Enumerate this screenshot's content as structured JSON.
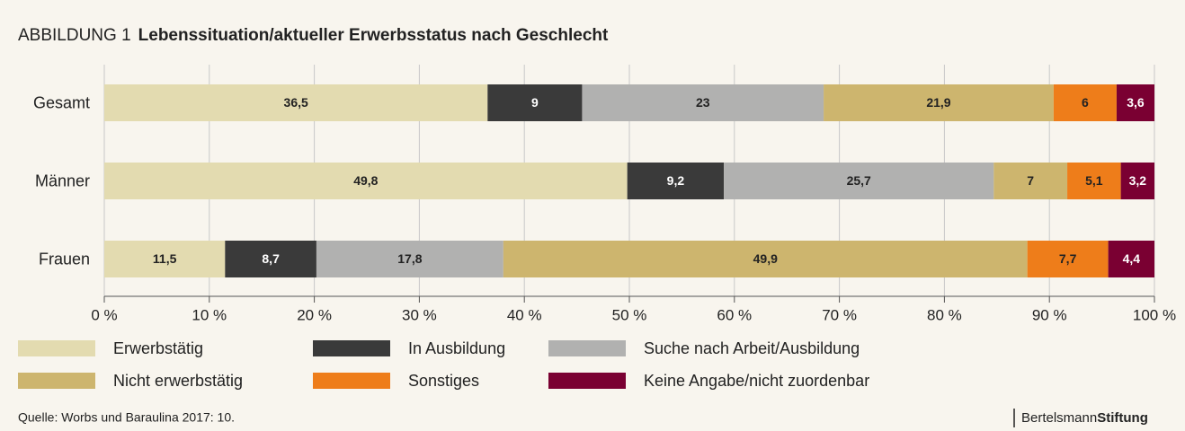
{
  "chart_data": {
    "type": "stacked_barh",
    "title_prefix": "ABBILDUNG 1",
    "title": "Lebenssituation/aktueller Erwerbsstatus nach Geschlecht",
    "categories": [
      "Gesamt",
      "Männer",
      "Frauen"
    ],
    "series": [
      {
        "name": "Erwerbstätig",
        "color": "#e3dbb0",
        "values": [
          36.5,
          49.8,
          11.5
        ],
        "value_labels": [
          "36,5",
          "49,8",
          "11,5"
        ]
      },
      {
        "name": "In Ausbildung",
        "color": "#3a3a3a",
        "values": [
          9,
          9.2,
          8.7
        ],
        "value_labels": [
          "9",
          "9,2",
          "8,7"
        ]
      },
      {
        "name": "Suche nach Arbeit/Ausbildung",
        "color": "#b1b1b0",
        "values": [
          23,
          25.7,
          17.8
        ],
        "value_labels": [
          "23",
          "25,7",
          "17,8"
        ]
      },
      {
        "name": "Nicht erwerbstätig",
        "color": "#cdb56e",
        "values": [
          21.9,
          7,
          49.9
        ],
        "value_labels": [
          "21,9",
          "7",
          "49,9"
        ]
      },
      {
        "name": "Sonstiges",
        "color": "#ee7d1a",
        "values": [
          6,
          5.1,
          7.7
        ],
        "value_labels": [
          "6",
          "5,1",
          "7,7"
        ]
      },
      {
        "name": "Keine Angabe/nicht zuordenbar",
        "color": "#7a0032",
        "values": [
          3.6,
          3.2,
          4.4
        ],
        "value_labels": [
          "3,6",
          "3,2",
          "4,4"
        ]
      }
    ],
    "xlim": [
      0,
      100
    ],
    "xticks": [
      {
        "value": 0,
        "label": "0 %"
      },
      {
        "value": 10,
        "label": "10 %"
      },
      {
        "value": 20,
        "label": "20 %"
      },
      {
        "value": 30,
        "label": "30 %"
      },
      {
        "value": 40,
        "label": "40 %"
      },
      {
        "value": 50,
        "label": "50 %"
      },
      {
        "value": 60,
        "label": "60 %"
      },
      {
        "value": 70,
        "label": "70 %"
      },
      {
        "value": 80,
        "label": "80 %"
      },
      {
        "value": 90,
        "label": "90 %"
      },
      {
        "value": 100,
        "label": "100 %"
      }
    ],
    "grid": true,
    "source": "Quelle: Worbs und Baraulina 2017: 10.",
    "logo": [
      "Bertelsmann",
      "Stiftung"
    ]
  }
}
